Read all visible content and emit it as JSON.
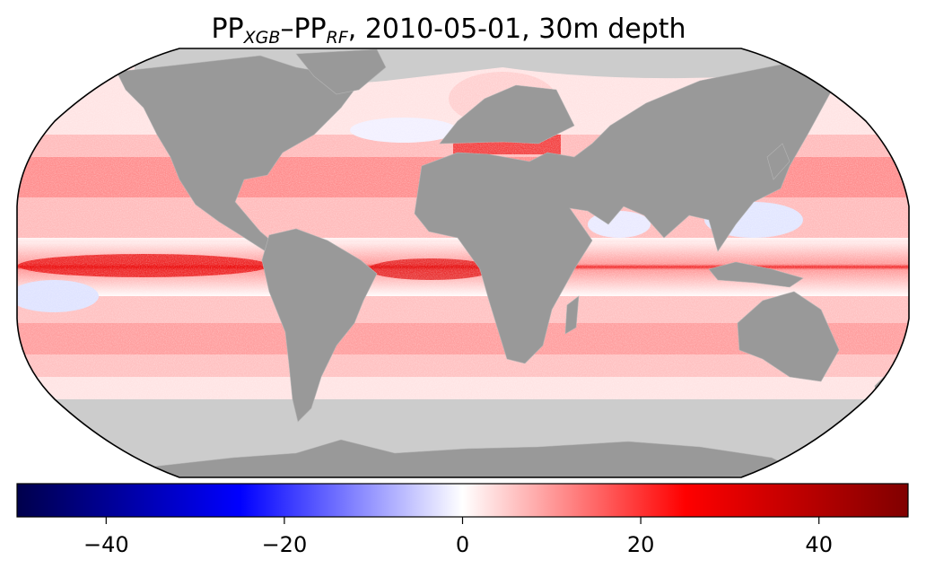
{
  "title": {
    "pp1": "PP",
    "sub1": "XGB",
    "dash": "–",
    "pp2": "PP",
    "sub2": "RF",
    "rest": ", 2010-05-01, 30m depth"
  },
  "map": {
    "projection": "Robinson",
    "ocean_background": "#ffffff",
    "land_color": "#999999",
    "no_data_color": "#cccccc",
    "outline_color": "#000000"
  },
  "colorbar": {
    "cmap": "seismic",
    "vmin": -50,
    "vmax": 50,
    "ticks": [
      {
        "value": -40,
        "label": "−40"
      },
      {
        "value": -20,
        "label": "−20"
      },
      {
        "value": 0,
        "label": "0"
      },
      {
        "value": 20,
        "label": "20"
      },
      {
        "value": 40,
        "label": "40"
      }
    ],
    "colors": [
      "#00004c",
      "#0000ff",
      "#ffffff",
      "#ff0000",
      "#800000"
    ]
  }
}
